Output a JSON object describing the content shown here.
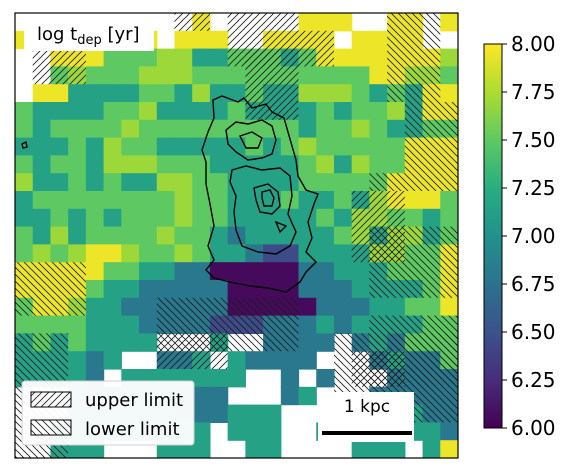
{
  "chart_data": {
    "type": "heatmap",
    "title": "log t",
    "title_sub": "dep",
    "title_unit": " [yr]",
    "colorbar": {
      "colormap": "viridis",
      "range": [
        6.0,
        8.0
      ],
      "ticks": [
        6.0,
        6.25,
        6.5,
        6.75,
        7.0,
        7.25,
        7.5,
        7.75,
        8.0
      ],
      "tick_labels": [
        "6.00",
        "6.25",
        "6.50",
        "6.75",
        "7.00",
        "7.25",
        "7.50",
        "7.75",
        "8.00"
      ]
    },
    "legend": {
      "placement": "bottom-left",
      "entries": [
        {
          "label": "upper limit",
          "hatch": "forward"
        },
        {
          "label": "lower limit",
          "hatch": "backward"
        }
      ]
    },
    "scale_bar": {
      "label": "1 kpc"
    },
    "grid": false,
    "layers": {
      "values": [
        "..........Y.....YYY..YY.Y",
        "YYYY...Y.YYY..YYYY.YYYY..",
        "..YYYLLLHHMMLLLMLYYYYYYYH",
        "..LHLLLHHHLLLLLLLLLLYYHHL",
        ".YYMMMMLLMHMMLMMHHHLMLMYY",
        "LMMMMLLHMMMMLMMMMLMLLHMYY",
        "LMLLLLHLLLLLLLLLMLLHLMMLL",
        "MMMLMHLLMMMMMLMLHLLLLLYYY",
        "LMLLMHHHLLLMMMMMLHMHLLYYY",
        "HMMLMLMMHHLLMMMMLLLLLYYYY",
        "MLLLLLLLLHLLMMMLMMLMHYYYL",
        "MMLMLMLLLHLLMMMMMLMHHLLML",
        "LMHMLLLLHLLMRMMMMMLHMHHML",
        "LHLHYYHLLHLMMRPPMMMMHHLLY",
        "YYYYYLLMMRRSSSSSRRMMMLLLY",
        "YYYYLMMRRRRRSSSSRRRMMMMLY",
        "LYYHMMRRRRRRSSSSSRRRMMLLY",
        "LLLLMMMRRRRPPPRRRMRMMMMLL",
        "MLMLMMMM...M..RRRR.RMRLLL",
        "MMMMRM..RRM.MRRRR...RMRRL",
        "MMMMR.MMMMMMM..R.R...RRRR",
        "...MRRMMMRRR...RM...RRRRR",
        "...MMMMMMRRRMMM....MRMMRR",
        "..MMMMMMRMM.MMM..M..MMMMR",
        "..MMM...MMM..MM....MMM.MY"
      ],
      "level_values": {
        "Y": 7.95,
        "H": 7.7,
        "L": 7.5,
        "M": 7.15,
        "R": 6.8,
        "P": 6.45,
        "S": 6.05
      },
      "upper_limit_regions": [
        [
          0,
          9,
          1,
          2
        ],
        [
          0,
          12,
          1,
          4
        ],
        [
          2,
          1,
          2,
          3
        ],
        [
          1,
          12,
          2,
          6
        ],
        [
          2,
          13,
          4,
          3
        ],
        [
          10,
          19,
          4,
          3
        ],
        [
          18,
          8,
          2,
          4
        ],
        [
          19,
          19,
          2,
          3
        ]
      ],
      "lower_limit_regions": [
        [
          0,
          21,
          5,
          3
        ],
        [
          5,
          22,
          4,
          3
        ],
        [
          9,
          20,
          1,
          5
        ],
        [
          12,
          20,
          4,
          5
        ],
        [
          14,
          0,
          3,
          4
        ],
        [
          16,
          8,
          3,
          8
        ],
        [
          17,
          20,
          4,
          5
        ],
        [
          18,
          0,
          7,
          3
        ],
        [
          18,
          18,
          5,
          7
        ]
      ]
    }
  }
}
